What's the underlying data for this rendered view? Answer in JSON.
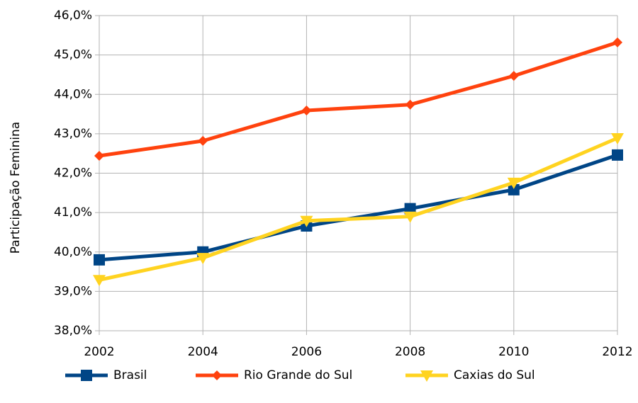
{
  "chart_data": {
    "type": "line",
    "y_label": "Participação Feminina",
    "x": [
      2002,
      2004,
      2006,
      2008,
      2010,
      2012
    ],
    "xlim": [
      2002,
      2012
    ],
    "xticks": [
      2002,
      2004,
      2006,
      2008,
      2010,
      2012
    ],
    "ylim": [
      38,
      46
    ],
    "yticks": [
      {
        "value": 38,
        "label": "38,0%"
      },
      {
        "value": 39,
        "label": "39,0%"
      },
      {
        "value": 40,
        "label": "40,0%"
      },
      {
        "value": 41,
        "label": "41,0%"
      },
      {
        "value": 42,
        "label": "42,0%"
      },
      {
        "value": 43,
        "label": "43,0%"
      },
      {
        "value": 44,
        "label": "44,0%"
      },
      {
        "value": 45,
        "label": "45,0%"
      },
      {
        "value": 46,
        "label": "46,0%"
      }
    ],
    "grid": true,
    "legend": "bottom",
    "series": [
      {
        "name": "Brasil",
        "color": "#004586",
        "marker": "square",
        "values": [
          39.8,
          40.0,
          40.66,
          41.1,
          41.58,
          42.46
        ]
      },
      {
        "name": "Rio Grande do Sul",
        "color": "#ff420e",
        "marker": "diamond",
        "values": [
          42.44,
          42.82,
          43.59,
          43.74,
          44.47,
          45.32
        ]
      },
      {
        "name": "Caxias do Sul",
        "color": "#ffd320",
        "marker": "triangle-down",
        "values": [
          39.29,
          39.85,
          40.79,
          40.9,
          41.76,
          42.89
        ]
      }
    ]
  }
}
